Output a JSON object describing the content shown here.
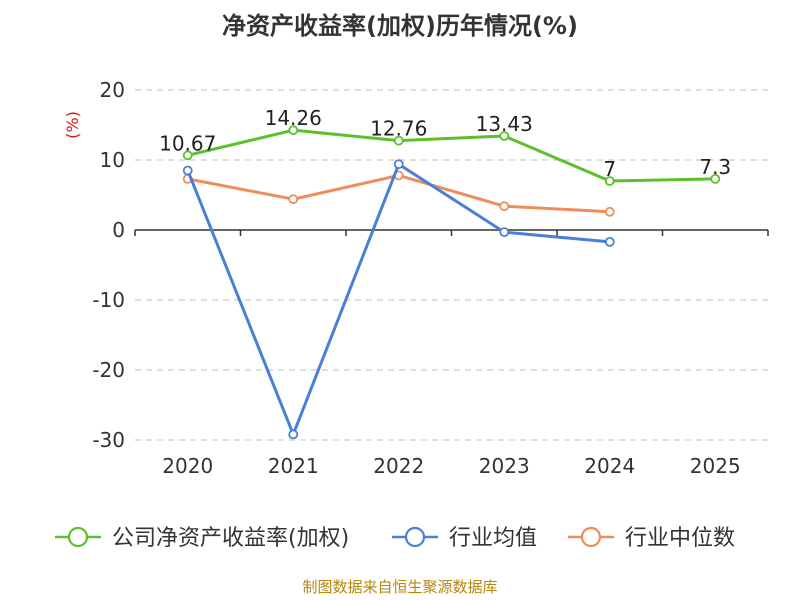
{
  "chart_data": {
    "type": "line",
    "title": "净资产收益率(加权)历年情况(%)",
    "ylabel": "(%)",
    "xlabel": "",
    "categories": [
      "2020",
      "2021",
      "2022",
      "2023",
      "2024",
      "2025"
    ],
    "ylim": [
      -30,
      20
    ],
    "yticks": [
      20,
      10,
      0,
      -10,
      -20,
      -30
    ],
    "grid": true,
    "legend_position": "bottom",
    "series": [
      {
        "name": "公司净资产收益率(加权)",
        "color": "#5cc02a",
        "values": [
          10.67,
          14.26,
          12.76,
          13.43,
          7,
          7.3
        ],
        "labels": [
          "10.67",
          "14.26",
          "12.76",
          "13.43",
          "7",
          "7.3"
        ]
      },
      {
        "name": "行业均值",
        "color": "#4a7fd8",
        "values": [
          8.5,
          -29.2,
          9.4,
          -0.3,
          -1.7,
          null
        ]
      },
      {
        "name": "行业中位数",
        "color": "#f08c5a",
        "values": [
          7.3,
          4.4,
          7.8,
          3.4,
          2.6,
          null
        ]
      }
    ]
  },
  "footer": "制图数据来自恒生聚源数据库"
}
